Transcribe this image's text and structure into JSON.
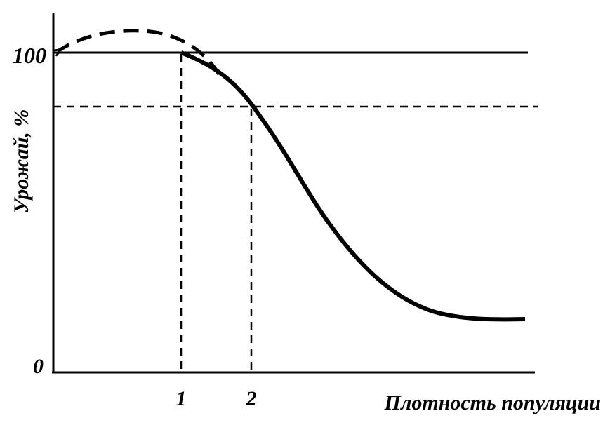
{
  "y_axis": {
    "label": "Урожай, %",
    "ticks": [
      "100",
      "0"
    ]
  },
  "x_axis": {
    "label": "Плотность популяции",
    "ticks": [
      "1",
      "2"
    ]
  }
}
